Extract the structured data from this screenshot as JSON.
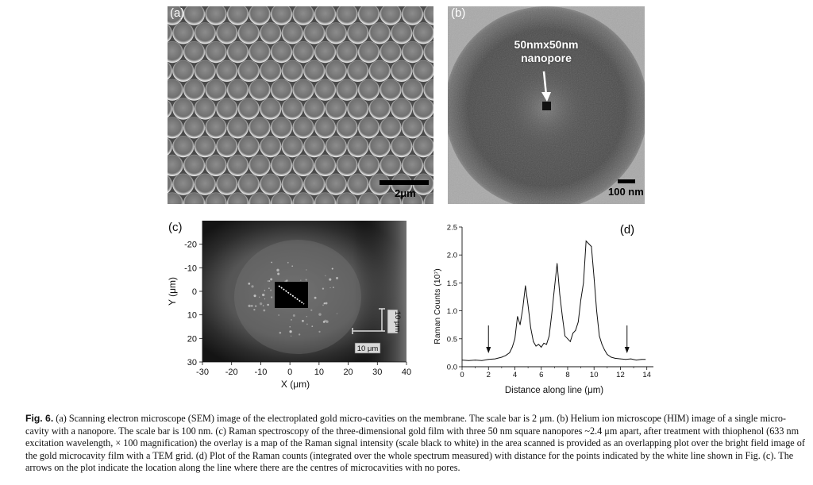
{
  "panels": {
    "a": {
      "label": "(a)",
      "scalebar": "2μm"
    },
    "b": {
      "label": "(b)",
      "annotation_line1": "50nmx50nm",
      "annotation_line2": "nanopore",
      "scalebar": "100 nm"
    },
    "c": {
      "label": "(c)",
      "grid_label_vertical": "10 μm",
      "grid_label_horizontal": "10 μm"
    },
    "d": {
      "label": "(d)"
    }
  },
  "caption": {
    "fig_label": "Fig. 6.",
    "text": " (a) Scanning electron microscope (SEM) image of the electroplated gold micro-cavities on the membrane. The scale bar is 2 μm. (b) Helium ion microscope (HIM) image of a single micro-cavity with a nanopore. The scale bar is 100 nm. (c) Raman spectroscopy of the three-dimensional gold film with three 50 nm square nanopores ~2.4 μm apart, after treatment with thiophenol (633 nm excitation wavelength, × 100 magnification) the overlay is a map of the Raman signal intensity (scale black to white) in the area scanned is provided as an overlapping plot over the bright field image of the gold microcavity film with a TEM grid. (d) Plot of the Raman counts (integrated over the whole spectrum measured) with distance for the points indicated by the white line shown in Fig. (c). The arrows on the plot indicate the location along the line where there are the centres of microcavities with no pores."
  },
  "chart_data": [
    {
      "type": "heatmap",
      "panel": "(c)",
      "xlabel": "X (μm)",
      "ylabel": "Y (μm)",
      "xlim": [
        -30,
        40
      ],
      "ylim": [
        30,
        -30
      ],
      "xticks": [
        -30,
        -20,
        -10,
        0,
        10,
        20,
        30,
        40
      ],
      "yticks": [
        -20,
        -10,
        0,
        10,
        20,
        30
      ]
    },
    {
      "type": "line",
      "panel": "(d)",
      "xlabel": "Distance along line (μm)",
      "ylabel": "Raman Counts (10⁷)",
      "xlim": [
        0,
        14.5
      ],
      "ylim": [
        0,
        2.5
      ],
      "xticks": [
        0,
        2,
        4,
        6,
        8,
        10,
        12,
        14
      ],
      "yticks": [
        0.0,
        0.5,
        1.0,
        1.5,
        2.0,
        2.5
      ],
      "ytick_labels": [
        "0.0",
        "0.5",
        "1.0",
        "1.5",
        "2.0",
        "2.5"
      ],
      "arrows_at": [
        2.0,
        12.5
      ],
      "series": [
        {
          "x": [
            0.0,
            0.5,
            1.0,
            1.5,
            2.0,
            2.5,
            3.0,
            3.3,
            3.6,
            3.8,
            4.0,
            4.2,
            4.4,
            4.6,
            4.8,
            5.0,
            5.2,
            5.4,
            5.6,
            5.8,
            6.0,
            6.2,
            6.4,
            6.6,
            6.8,
            7.0,
            7.2,
            7.4,
            7.6,
            7.8,
            8.0,
            8.2,
            8.4,
            8.6,
            8.8,
            9.0,
            9.2,
            9.4,
            9.6,
            9.8,
            10.0,
            10.2,
            10.4,
            10.6,
            10.8,
            11.0,
            11.3,
            11.6,
            12.0,
            12.4,
            12.8,
            13.2,
            13.6,
            13.9
          ],
          "y": [
            0.12,
            0.11,
            0.12,
            0.11,
            0.13,
            0.14,
            0.17,
            0.2,
            0.25,
            0.35,
            0.5,
            0.9,
            0.75,
            1.05,
            1.45,
            1.1,
            0.7,
            0.45,
            0.37,
            0.4,
            0.35,
            0.42,
            0.4,
            0.55,
            0.95,
            1.4,
            1.85,
            1.3,
            0.9,
            0.55,
            0.5,
            0.45,
            0.6,
            0.65,
            0.8,
            1.2,
            1.5,
            2.25,
            2.2,
            2.15,
            1.6,
            1.0,
            0.55,
            0.4,
            0.3,
            0.22,
            0.17,
            0.15,
            0.14,
            0.13,
            0.14,
            0.12,
            0.13,
            0.13
          ]
        }
      ]
    }
  ]
}
